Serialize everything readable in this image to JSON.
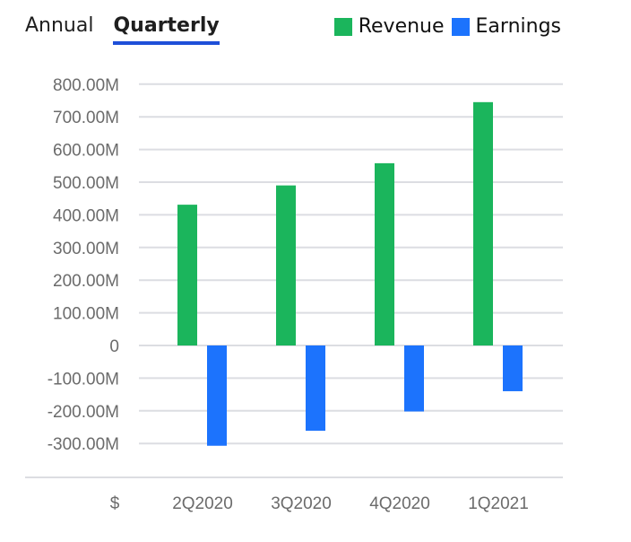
{
  "tabs": [
    {
      "label": "Annual",
      "active": false
    },
    {
      "label": "Quarterly",
      "active": true
    }
  ],
  "colors": {
    "revenue": "#1bb55c",
    "earnings": "#1c73fd",
    "active_tab_underline": "#1e4fd8",
    "grid": "#dcdde2"
  },
  "chart_data": {
    "type": "bar",
    "categories": [
      "2Q2020",
      "3Q2020",
      "4Q2020",
      "1Q2021"
    ],
    "series": [
      {
        "name": "Revenue",
        "values": [
          431,
          490,
          558,
          745
        ],
        "color": "#1bb55c"
      },
      {
        "name": "Earnings",
        "values": [
          -307,
          -261,
          -202,
          -140
        ],
        "color": "#1c73fd"
      }
    ],
    "units": "M",
    "currency_label": "$",
    "yticks": [
      800,
      700,
      600,
      500,
      400,
      300,
      200,
      100,
      0,
      -100,
      -200,
      -300
    ],
    "ytick_labels": [
      "800.00M",
      "700.00M",
      "600.00M",
      "500.00M",
      "400.00M",
      "300.00M",
      "200.00M",
      "100.00M",
      "0",
      "-100.00M",
      "-200.00M",
      "-300.00M"
    ],
    "ylim": [
      -400,
      800
    ],
    "grid": true,
    "legend": "top-right",
    "title": "",
    "xlabel": "",
    "ylabel": ""
  }
}
